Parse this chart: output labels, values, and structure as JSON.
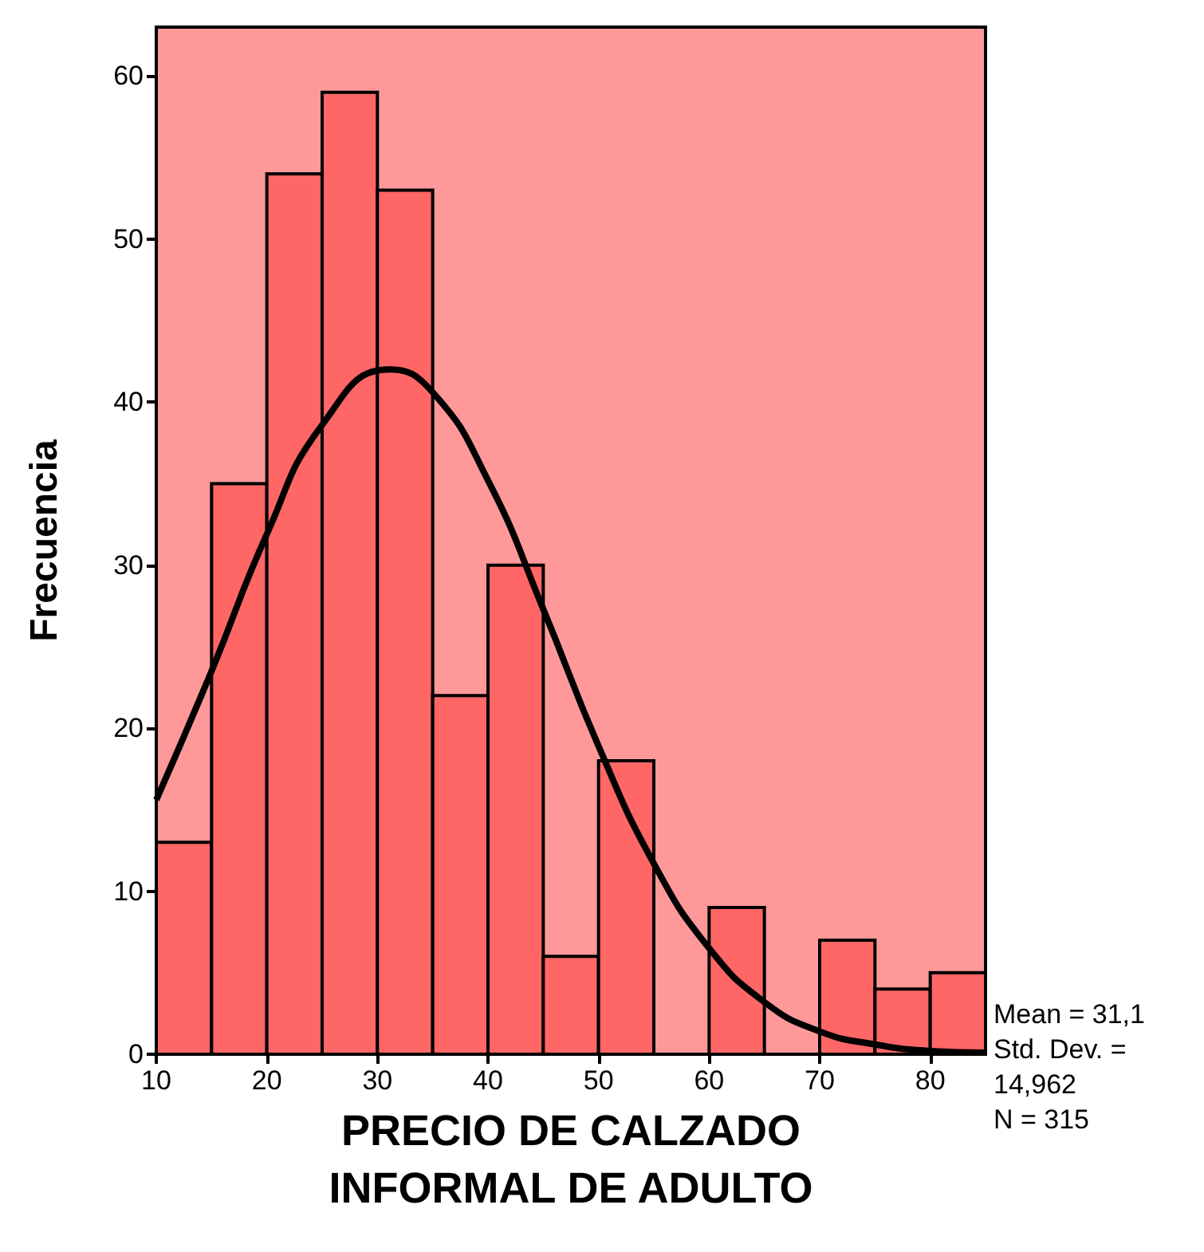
{
  "chart_data": {
    "type": "histogram",
    "xlabel": "PRECIO DE CALZADO INFORMAL DE ADULTO",
    "ylabel": "Frecuencia",
    "xlim": [
      10,
      85
    ],
    "xticks": [
      10,
      20,
      30,
      40,
      50,
      60,
      70,
      80
    ],
    "ylim": [
      0,
      63
    ],
    "yticks": [
      0,
      10,
      20,
      30,
      40,
      50,
      60
    ],
    "grid": false,
    "annotations": [
      "Mean = 31,1",
      "Std. Dev. = 14,962",
      "N = 315"
    ],
    "series": [
      {
        "color": "#ff6666",
        "bins": [
          10,
          15,
          20,
          25,
          30,
          35,
          40,
          45,
          50,
          55,
          60,
          65,
          70,
          75,
          80,
          85
        ],
        "values": [
          13,
          35,
          54,
          59,
          53,
          22,
          30,
          6,
          18,
          0,
          9,
          0,
          7,
          4,
          5
        ]
      },
      {
        "type": "line",
        "color": "#000000",
        "x": [
          10,
          15,
          20,
          25,
          31.1,
          35,
          40,
          45,
          50,
          55,
          60,
          65,
          70,
          75,
          80,
          85
        ],
        "values": [
          15.6,
          23.5,
          31.9,
          38.6,
          42,
          40.6,
          35.2,
          27.3,
          18.9,
          11.7,
          6.5,
          3.2,
          1.4,
          0.6,
          0.2,
          0.1
        ]
      }
    ]
  }
}
